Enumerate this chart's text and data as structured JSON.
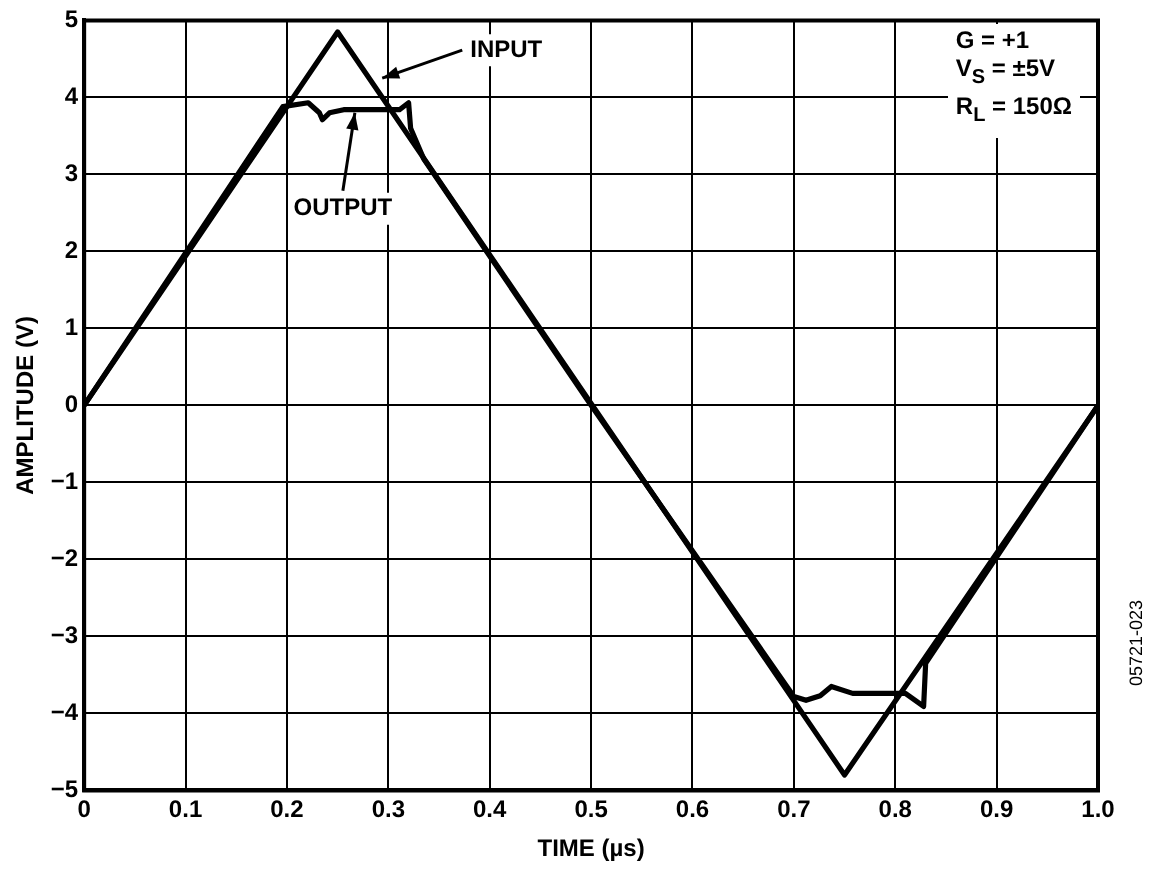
{
  "chart_data": {
    "type": "line",
    "xlabel": "TIME (µs)",
    "ylabel": "AMPLITUDE (V)",
    "series": [
      {
        "color": "#000000",
        "x": [
          0,
          0.25,
          0.75,
          1.0
        ],
        "values": [
          0,
          4.85,
          -4.8,
          0
        ]
      },
      {
        "color": "#000000",
        "x": [
          0,
          0.196,
          0.221,
          0.232,
          0.235,
          0.242,
          0.256,
          0.311,
          0.32,
          0.322,
          0.335,
          0.5,
          0.7,
          0.712,
          0.726,
          0.737,
          0.758,
          0.81,
          0.828,
          0.83,
          1.0
        ],
        "values": [
          0,
          3.88,
          3.93,
          3.8,
          3.71,
          3.8,
          3.84,
          3.84,
          3.93,
          3.6,
          3.2,
          0,
          -3.78,
          -3.83,
          -3.77,
          -3.65,
          -3.74,
          -3.74,
          -3.91,
          -3.35,
          0
        ]
      }
    ],
    "xlim": [
      0,
      1.0
    ],
    "xticks": [
      0,
      0.1,
      0.2,
      0.3,
      0.4,
      0.5,
      0.6,
      0.7,
      0.8,
      0.9,
      {
        "value": 1.0,
        "label": "1.0"
      }
    ],
    "ylim": [
      -5,
      5
    ],
    "yticks": [
      {
        "value": -5,
        "label": "−5"
      },
      {
        "value": -4,
        "label": "−4"
      },
      {
        "value": -3,
        "label": "−3"
      },
      {
        "value": -2,
        "label": "−2"
      },
      {
        "value": -1,
        "label": "−1"
      },
      0,
      1,
      2,
      3,
      4,
      5
    ],
    "grid": true,
    "legend": false,
    "marker": "none",
    "line_style": "solid",
    "annotations": [
      {
        "text": "INPUT",
        "x": 0.294,
        "y": 4.25
      },
      {
        "text": "OUTPUT",
        "x": 0.267,
        "y": 3.8
      },
      "G = +1",
      "V$_{S}$ = ±5V",
      "R$_{L}$ = 150Ω",
      "05721-023"
    ]
  }
}
